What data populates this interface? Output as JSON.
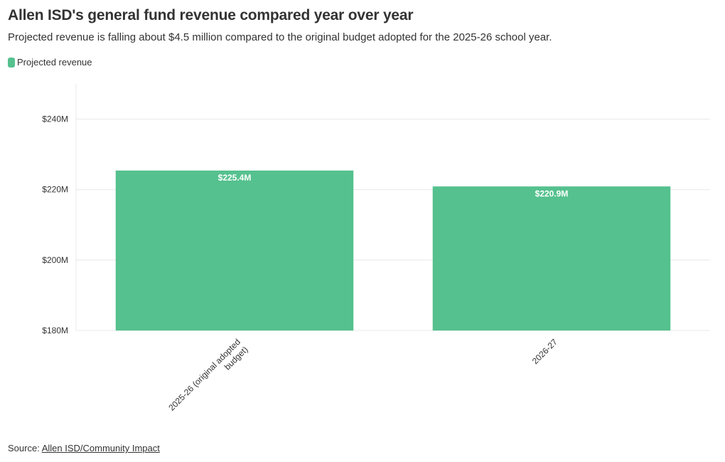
{
  "header": {
    "title": "Allen ISD's general fund revenue compared year over year",
    "subtitle": "Projected revenue is falling about $4.5 million compared to the original budget adopted for the 2025-26 school year."
  },
  "legend": {
    "label": "Projected revenue"
  },
  "colors": {
    "bar": "#55c18e",
    "grid": "#e8e8e8",
    "axis_text": "#333333",
    "label_text": "#ffffff"
  },
  "chart_data": {
    "type": "bar",
    "categories": [
      "2025-26 (original adopted budget)",
      "2026-27"
    ],
    "category_label_lines": [
      [
        "2025-26 (original adopted",
        "budget)"
      ],
      [
        "2026-27"
      ]
    ],
    "series": [
      {
        "name": "Projected revenue",
        "values": [
          225.4,
          220.9
        ]
      }
    ],
    "data_labels": [
      "$225.4M",
      "$220.9M"
    ],
    "y_ticks": [
      180,
      200,
      220,
      240
    ],
    "y_tick_labels": [
      "$180M",
      "$200M",
      "$220M",
      "$240M"
    ],
    "ylim": [
      180,
      250
    ],
    "grid": true,
    "legend_position": "top-left"
  },
  "footer": {
    "source_prefix": "Source:",
    "source_link": "Allen ISD/Community Impact"
  }
}
